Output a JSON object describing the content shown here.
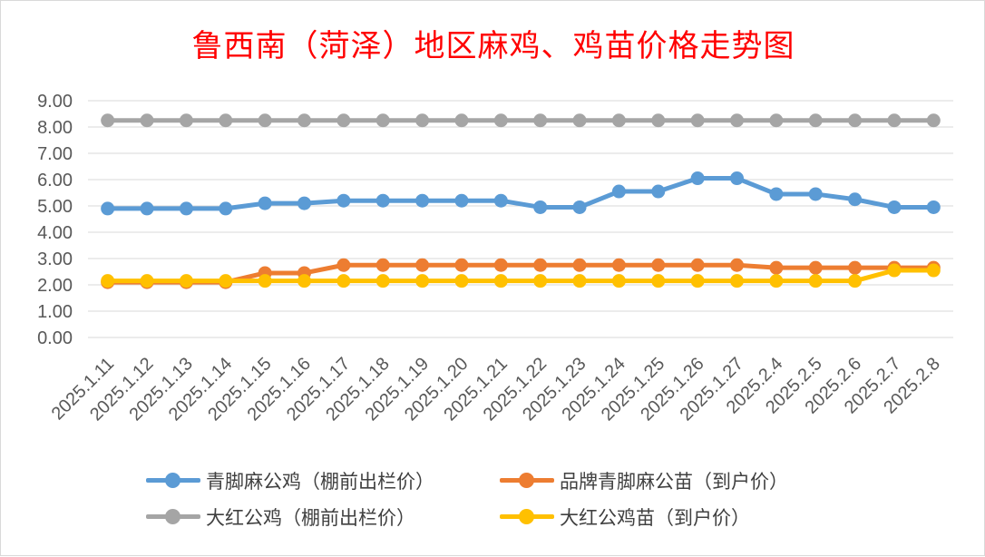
{
  "chart_data": {
    "type": "line",
    "title": "鲁西南（菏泽）地区麻鸡、鸡苗价格走势图",
    "categories": [
      "2025.1.11",
      "2025.1.12",
      "2025.1.13",
      "2025.1.14",
      "2025.1.15",
      "2025.1.16",
      "2025.1.17",
      "2025.1.18",
      "2025.1.19",
      "2025.1.20",
      "2025.1.21",
      "2025.1.22",
      "2025.1.23",
      "2025.1.24",
      "2025.1.25",
      "2025.1.26",
      "2025.1.27",
      "2025.2.4",
      "2025.2.5",
      "2025.2.6",
      "2025.2.7",
      "2025.2.8"
    ],
    "ylim": [
      0,
      9
    ],
    "yticks": [
      "0.00",
      "1.00",
      "2.00",
      "3.00",
      "4.00",
      "5.00",
      "6.00",
      "7.00",
      "8.00",
      "9.00"
    ],
    "grid": true,
    "legend_position": "bottom",
    "series": [
      {
        "name": "青脚麻公鸡（棚前出栏价）",
        "color": "#5b9bd5",
        "values": [
          4.9,
          4.9,
          4.9,
          4.9,
          5.1,
          5.1,
          5.2,
          5.2,
          5.2,
          5.2,
          5.2,
          4.95,
          4.95,
          5.55,
          5.55,
          6.05,
          6.05,
          5.45,
          5.45,
          5.25,
          4.95,
          4.95
        ]
      },
      {
        "name": "品牌青脚麻公苗（到户价）",
        "color": "#ed7d31",
        "values": [
          2.1,
          2.1,
          2.1,
          2.1,
          2.45,
          2.45,
          2.75,
          2.75,
          2.75,
          2.75,
          2.75,
          2.75,
          2.75,
          2.75,
          2.75,
          2.75,
          2.75,
          2.65,
          2.65,
          2.65,
          2.65,
          2.65
        ]
      },
      {
        "name": "大红公鸡（棚前出栏价）",
        "color": "#a5a5a5",
        "values": [
          8.25,
          8.25,
          8.25,
          8.25,
          8.25,
          8.25,
          8.25,
          8.25,
          8.25,
          8.25,
          8.25,
          8.25,
          8.25,
          8.25,
          8.25,
          8.25,
          8.25,
          8.25,
          8.25,
          8.25,
          8.25,
          8.25
        ]
      },
      {
        "name": "大红公鸡苗（到户价）",
        "color": "#ffc000",
        "values": [
          2.15,
          2.15,
          2.15,
          2.15,
          2.15,
          2.15,
          2.15,
          2.15,
          2.15,
          2.15,
          2.15,
          2.15,
          2.15,
          2.15,
          2.15,
          2.15,
          2.15,
          2.15,
          2.15,
          2.15,
          2.55,
          2.55
        ]
      }
    ]
  }
}
